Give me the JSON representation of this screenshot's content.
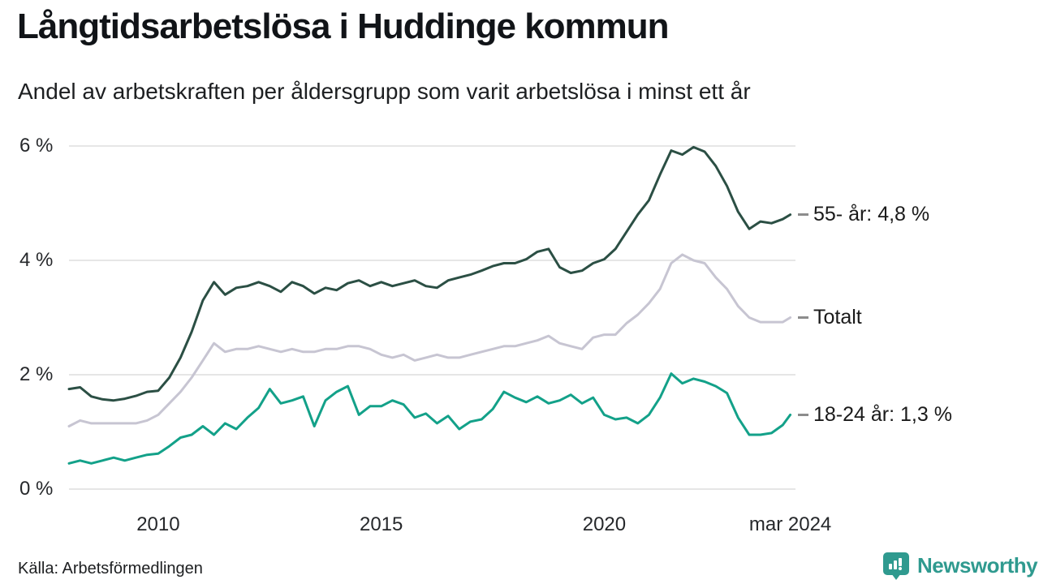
{
  "header": {
    "title": "Långtidsarbetslösa i Huddinge kommun",
    "subtitle": "Andel av arbetskraften per åldersgrupp som varit arbetslösa i minst ett år"
  },
  "footer": {
    "source": "Källa: Arbetsförmedlingen"
  },
  "logo": {
    "text": "Newsworthy",
    "color": "#2f9a8f"
  },
  "colors": {
    "grid": "#dedede",
    "label_dash": "#8c8c8c",
    "text": "#1a1a1a"
  },
  "chart_data": {
    "type": "line",
    "title": "Långtidsarbetslösa i Huddinge kommun",
    "subtitle": "Andel av arbetskraften per åldersgrupp som varit arbetslösa i minst ett år",
    "source": "Källa: Arbetsförmedlingen",
    "x_range": [
      2008,
      2024.25
    ],
    "y_range": [
      0,
      6
    ],
    "grid": "horizontal-only",
    "legend_position": "right-end-labels",
    "y_ticks": [
      {
        "value": 0,
        "label": "0 %"
      },
      {
        "value": 2,
        "label": "2 %"
      },
      {
        "value": 4,
        "label": "4 %"
      },
      {
        "value": 6,
        "label": "6 %"
      }
    ],
    "x_ticks": [
      {
        "t": 2010,
        "label": "2010"
      },
      {
        "t": 2015,
        "label": "2015"
      },
      {
        "t": 2020,
        "label": "2020"
      },
      {
        "t": 2024.17,
        "label": "mar 2024"
      }
    ],
    "x": [
      2008.0,
      2008.25,
      2008.5,
      2008.75,
      2009.0,
      2009.25,
      2009.5,
      2009.75,
      2010.0,
      2010.25,
      2010.5,
      2010.75,
      2011.0,
      2011.25,
      2011.5,
      2011.75,
      2012.0,
      2012.25,
      2012.5,
      2012.75,
      2013.0,
      2013.25,
      2013.5,
      2013.75,
      2014.0,
      2014.25,
      2014.5,
      2014.75,
      2015.0,
      2015.25,
      2015.5,
      2015.75,
      2016.0,
      2016.25,
      2016.5,
      2016.75,
      2017.0,
      2017.25,
      2017.5,
      2017.75,
      2018.0,
      2018.25,
      2018.5,
      2018.75,
      2019.0,
      2019.25,
      2019.5,
      2019.75,
      2020.0,
      2020.25,
      2020.5,
      2020.75,
      2021.0,
      2021.25,
      2021.5,
      2021.75,
      2022.0,
      2022.25,
      2022.5,
      2022.75,
      2023.0,
      2023.25,
      2023.5,
      2023.75,
      2024.0,
      2024.17
    ],
    "series": [
      {
        "id": "55-ar",
        "name": "55- år",
        "end_label": "55- år: 4,8 %",
        "latest_value_pct": 4.8,
        "color": "#2b4f44",
        "values": [
          1.75,
          1.78,
          1.62,
          1.57,
          1.55,
          1.58,
          1.63,
          1.7,
          1.72,
          1.95,
          2.3,
          2.75,
          3.3,
          3.62,
          3.4,
          3.52,
          3.55,
          3.62,
          3.55,
          3.45,
          3.62,
          3.55,
          3.42,
          3.52,
          3.48,
          3.6,
          3.65,
          3.55,
          3.62,
          3.55,
          3.6,
          3.65,
          3.55,
          3.52,
          3.65,
          3.7,
          3.75,
          3.82,
          3.9,
          3.95,
          3.95,
          4.02,
          4.15,
          4.2,
          3.88,
          3.78,
          3.82,
          3.95,
          4.02,
          4.2,
          4.5,
          4.8,
          5.05,
          5.5,
          5.92,
          5.85,
          5.98,
          5.9,
          5.65,
          5.3,
          4.85,
          4.55,
          4.68,
          4.65,
          4.72,
          4.8
        ]
      },
      {
        "id": "totalt",
        "name": "Totalt",
        "end_label": "Totalt",
        "latest_value_pct": 3.0,
        "color": "#c7c5d2",
        "values": [
          1.1,
          1.2,
          1.15,
          1.15,
          1.15,
          1.15,
          1.15,
          1.2,
          1.3,
          1.5,
          1.7,
          1.95,
          2.25,
          2.55,
          2.4,
          2.45,
          2.45,
          2.5,
          2.45,
          2.4,
          2.45,
          2.4,
          2.4,
          2.45,
          2.45,
          2.5,
          2.5,
          2.45,
          2.35,
          2.3,
          2.35,
          2.25,
          2.3,
          2.35,
          2.3,
          2.3,
          2.35,
          2.4,
          2.45,
          2.5,
          2.5,
          2.55,
          2.6,
          2.68,
          2.55,
          2.5,
          2.45,
          2.65,
          2.7,
          2.7,
          2.9,
          3.05,
          3.25,
          3.5,
          3.95,
          4.1,
          4.0,
          3.95,
          3.7,
          3.5,
          3.2,
          3.0,
          2.92,
          2.92,
          2.92,
          3.0
        ]
      },
      {
        "id": "18-24-ar",
        "name": "18-24 år",
        "end_label": "18-24 år: 1,3 %",
        "latest_value_pct": 1.3,
        "color": "#13a189",
        "values": [
          0.45,
          0.5,
          0.45,
          0.5,
          0.55,
          0.5,
          0.55,
          0.6,
          0.62,
          0.75,
          0.9,
          0.95,
          1.1,
          0.95,
          1.15,
          1.05,
          1.25,
          1.42,
          1.75,
          1.5,
          1.55,
          1.62,
          1.1,
          1.55,
          1.7,
          1.8,
          1.3,
          1.45,
          1.45,
          1.55,
          1.48,
          1.25,
          1.32,
          1.15,
          1.28,
          1.05,
          1.18,
          1.22,
          1.4,
          1.7,
          1.6,
          1.52,
          1.62,
          1.5,
          1.55,
          1.65,
          1.5,
          1.6,
          1.3,
          1.22,
          1.25,
          1.15,
          1.3,
          1.6,
          2.02,
          1.85,
          1.93,
          1.88,
          1.8,
          1.68,
          1.25,
          0.95,
          0.95,
          0.98,
          1.12,
          1.3
        ]
      }
    ]
  }
}
